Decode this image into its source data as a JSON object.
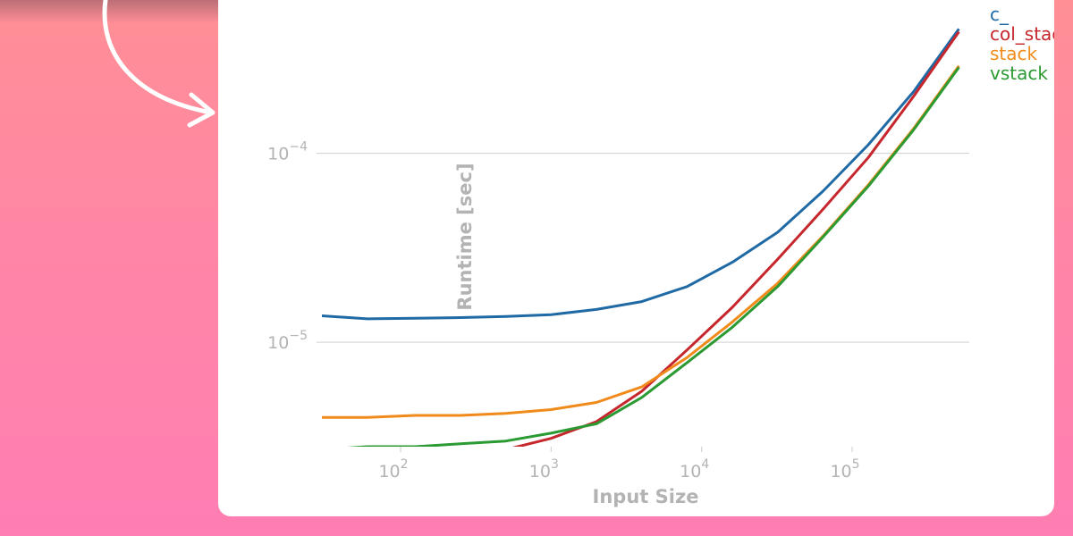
{
  "colors": {
    "c_": "#1f6aa5",
    "col_stack": "#c6272d",
    "stack": "#f08a1a",
    "vstack": "#2b9a32",
    "grid": "#d4d4d4",
    "text": "#b3b3b3"
  },
  "chart_data": {
    "type": "line",
    "xlabel": "Input Size",
    "ylabel": "Runtime [sec]",
    "xscale": "log",
    "yscale": "log",
    "xlim": [
      30,
      600000
    ],
    "ylim": [
      2.8e-06,
      0.00055
    ],
    "x_ticks": [
      {
        "value": 100,
        "base": "10",
        "exp": "2"
      },
      {
        "value": 1000,
        "base": "10",
        "exp": "3"
      },
      {
        "value": 10000,
        "base": "10",
        "exp": "4"
      },
      {
        "value": 100000,
        "base": "10",
        "exp": "5"
      }
    ],
    "y_ticks": [
      {
        "value": 1e-05,
        "base": "10",
        "exp": "−5"
      },
      {
        "value": 0.0001,
        "base": "10",
        "exp": "−4"
      }
    ],
    "grid": "horizontal",
    "legend": "top-right",
    "x": [
      30,
      60,
      125,
      250,
      500,
      1000,
      2000,
      4000,
      8000,
      16000,
      32000,
      64000,
      128000,
      256000,
      512000
    ],
    "series": [
      {
        "name": "c_",
        "key": "c_",
        "values": [
          1.38e-05,
          1.33e-05,
          1.34e-05,
          1.35e-05,
          1.37e-05,
          1.4e-05,
          1.49e-05,
          1.64e-05,
          1.97e-05,
          2.65e-05,
          3.82e-05,
          6.3e-05,
          0.000111,
          0.000212,
          0.000455
        ]
      },
      {
        "name": "col_stack",
        "key": "col_stack",
        "values": [
          2.2e-06,
          2.3e-06,
          2.4e-06,
          2.5e-06,
          2.7e-06,
          3.1e-06,
          3.8e-06,
          5.5e-06,
          9.1e-06,
          1.53e-05,
          2.75e-05,
          5.05e-05,
          9.5e-05,
          0.0002,
          0.00044
        ]
      },
      {
        "name": "stack",
        "key": "stack",
        "values": [
          4e-06,
          4e-06,
          4.1e-06,
          4.1e-06,
          4.2e-06,
          4.4e-06,
          4.8e-06,
          5.8e-06,
          8.3e-06,
          1.28e-05,
          2.05e-05,
          3.65e-05,
          6.8e-05,
          0.000135,
          0.00029
        ]
      },
      {
        "name": "vstack",
        "key": "vstack",
        "values": [
          2.7e-06,
          2.8e-06,
          2.8e-06,
          2.9e-06,
          3e-06,
          3.3e-06,
          3.7e-06,
          5.1e-06,
          7.8e-06,
          1.2e-05,
          1.97e-05,
          3.6e-05,
          6.7e-05,
          0.000133,
          0.000285
        ]
      }
    ]
  }
}
